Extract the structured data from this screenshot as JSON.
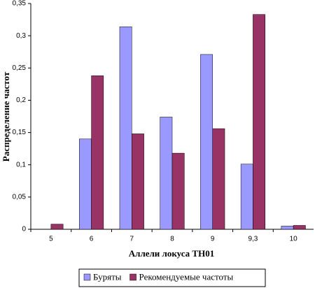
{
  "chart_data": {
    "type": "bar",
    "x_label": "Аллели локуса ТН01",
    "y_label": "Распределение частот",
    "categories": [
      "5",
      "6",
      "7",
      "8",
      "9",
      "9,3",
      "10"
    ],
    "series": [
      {
        "name": "Буряты",
        "color": "#9999ff",
        "values": [
          0,
          0.14,
          0.314,
          0.174,
          0.271,
          0.101,
          0.005
        ]
      },
      {
        "name": "Рекомендуемые частоты",
        "color": "#993366",
        "values": [
          0.008,
          0.238,
          0.148,
          0.118,
          0.156,
          0.333,
          0.006
        ]
      }
    ],
    "ylim": [
      0,
      0.35
    ],
    "yticks": [
      0,
      {
        "value": 0.05,
        "label": "0,05"
      },
      {
        "value": 0.1,
        "label": "0,1"
      },
      {
        "value": 0.15,
        "label": "0,15"
      },
      {
        "value": 0.2,
        "label": "0,2"
      },
      {
        "value": 0.25,
        "label": "0,25"
      },
      {
        "value": 0.3,
        "label": "0,3"
      },
      {
        "value": 0.35,
        "label": "0,35"
      }
    ],
    "grid": false,
    "legend": "bottom"
  }
}
